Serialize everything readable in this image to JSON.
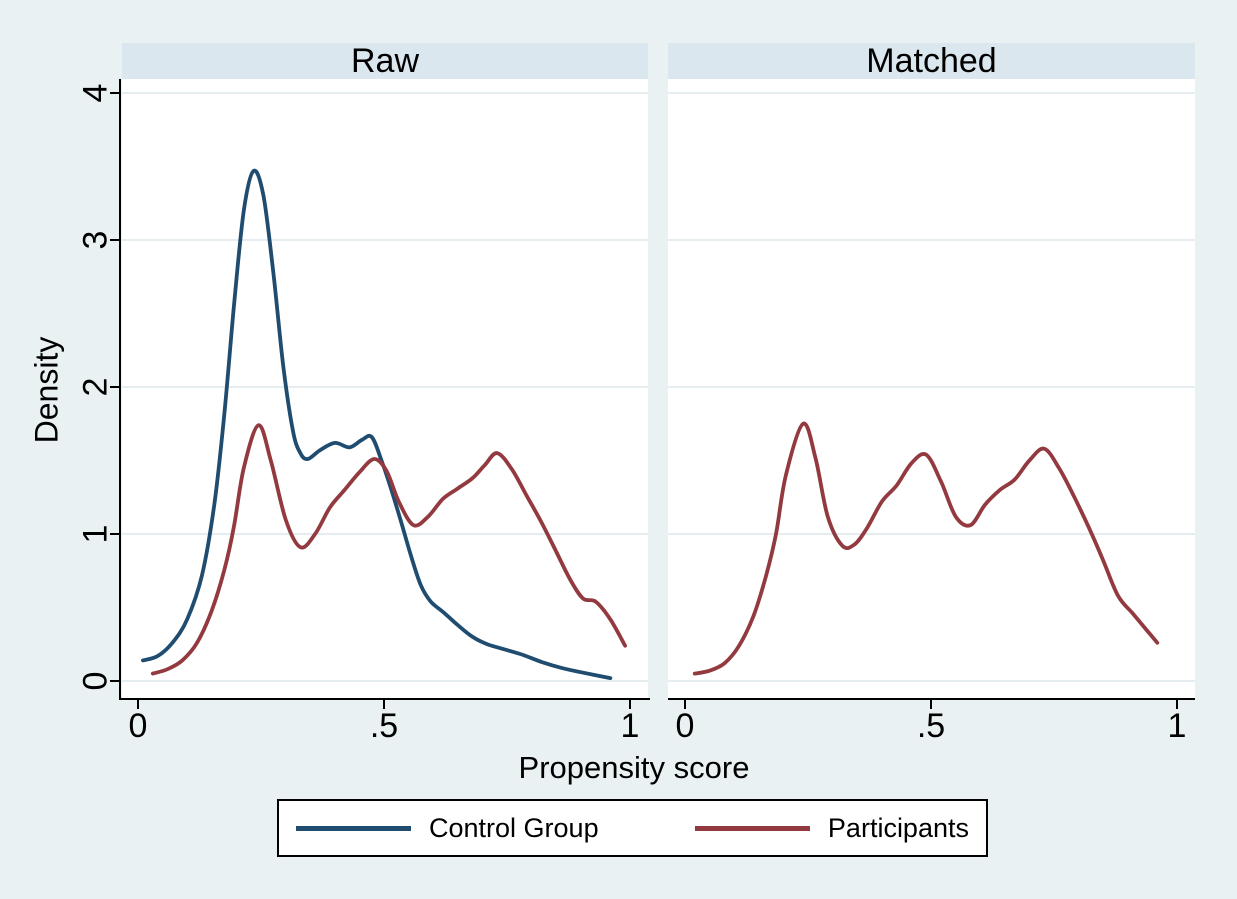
{
  "figure": {
    "background": "#e9f1f3",
    "panel_header_bg": "#dae7ee",
    "plot_bg": "#ffffff",
    "grid_color": "#e6edf0",
    "axis_color": "#000000"
  },
  "legend": {
    "items": [
      {
        "label": "Control Group",
        "color": "#1f4c6f"
      },
      {
        "label": "Participants",
        "color": "#923a3f"
      }
    ]
  },
  "chart_data": {
    "type": "line",
    "title": "",
    "xlabel": "Propensity score",
    "ylabel": "Density",
    "xlim": [
      0,
      1
    ],
    "ylim": [
      0,
      4
    ],
    "grid": true,
    "legend_position": "bottom",
    "x_ticks": {
      "values": [
        0,
        0.5,
        1
      ],
      "labels": [
        "0",
        ".5",
        "1"
      ]
    },
    "y_ticks": {
      "values": [
        0,
        1,
        2,
        3,
        4
      ],
      "labels": [
        "0",
        "1",
        "2",
        "3",
        "4"
      ]
    },
    "panels": [
      {
        "title": "Raw",
        "series": [
          {
            "name": "Control Group",
            "color": "#1f4c6f",
            "x": [
              0.01,
              0.04,
              0.07,
              0.1,
              0.13,
              0.155,
              0.175,
              0.195,
              0.215,
              0.235,
              0.255,
              0.275,
              0.295,
              0.315,
              0.33,
              0.345,
              0.37,
              0.4,
              0.43,
              0.455,
              0.475,
              0.495,
              0.515,
              0.535,
              0.555,
              0.575,
              0.595,
              0.62,
              0.65,
              0.68,
              0.71,
              0.74,
              0.78,
              0.82,
              0.86,
              0.9,
              0.96
            ],
            "y": [
              0.14,
              0.17,
              0.26,
              0.42,
              0.72,
              1.2,
              1.8,
              2.55,
              3.2,
              3.47,
              3.3,
              2.78,
              2.15,
              1.7,
              1.55,
              1.51,
              1.57,
              1.62,
              1.59,
              1.64,
              1.66,
              1.5,
              1.3,
              1.08,
              0.85,
              0.65,
              0.54,
              0.47,
              0.38,
              0.3,
              0.25,
              0.22,
              0.18,
              0.13,
              0.09,
              0.06,
              0.02
            ]
          },
          {
            "name": "Participants",
            "color": "#923a3f",
            "x": [
              0.03,
              0.06,
              0.09,
              0.12,
              0.15,
              0.175,
              0.195,
              0.215,
              0.245,
              0.27,
              0.3,
              0.33,
              0.36,
              0.39,
              0.42,
              0.45,
              0.48,
              0.505,
              0.53,
              0.56,
              0.59,
              0.62,
              0.65,
              0.68,
              0.705,
              0.73,
              0.76,
              0.79,
              0.82,
              0.85,
              0.88,
              0.905,
              0.93,
              0.96,
              0.99
            ],
            "y": [
              0.05,
              0.08,
              0.14,
              0.26,
              0.48,
              0.75,
              1.05,
              1.45,
              1.74,
              1.5,
              1.1,
              0.91,
              1.0,
              1.18,
              1.3,
              1.42,
              1.51,
              1.43,
              1.22,
              1.06,
              1.12,
              1.24,
              1.31,
              1.38,
              1.47,
              1.55,
              1.44,
              1.26,
              1.08,
              0.88,
              0.68,
              0.56,
              0.54,
              0.42,
              0.24
            ]
          }
        ]
      },
      {
        "title": "Matched",
        "series": [
          {
            "name": "Participants",
            "color": "#923a3f",
            "x": [
              0.02,
              0.05,
              0.08,
              0.11,
              0.14,
              0.165,
              0.185,
              0.205,
              0.24,
              0.265,
              0.29,
              0.32,
              0.345,
              0.37,
              0.4,
              0.43,
              0.46,
              0.49,
              0.52,
              0.55,
              0.58,
              0.61,
              0.64,
              0.67,
              0.7,
              0.73,
              0.76,
              0.79,
              0.82,
              0.85,
              0.88,
              0.91,
              0.935,
              0.96
            ],
            "y": [
              0.05,
              0.07,
              0.12,
              0.24,
              0.45,
              0.72,
              1.0,
              1.4,
              1.75,
              1.52,
              1.12,
              0.92,
              0.93,
              1.04,
              1.22,
              1.33,
              1.48,
              1.54,
              1.36,
              1.12,
              1.06,
              1.2,
              1.3,
              1.37,
              1.5,
              1.58,
              1.45,
              1.26,
              1.05,
              0.82,
              0.58,
              0.46,
              0.36,
              0.26
            ]
          }
        ]
      }
    ]
  }
}
